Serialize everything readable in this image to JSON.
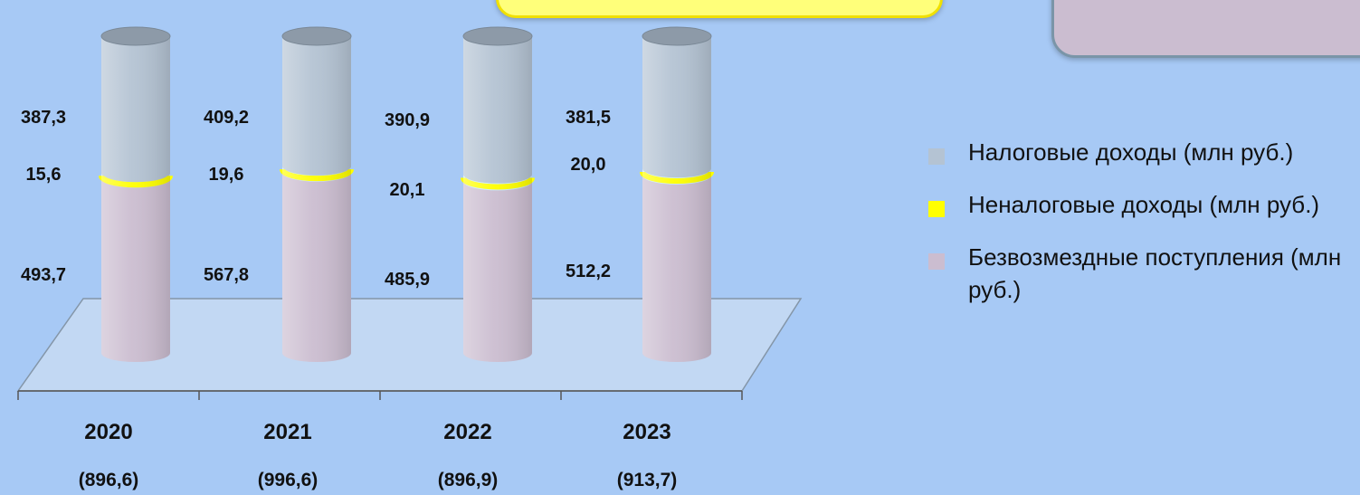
{
  "chart_data": {
    "type": "bar",
    "categories": [
      "2020",
      "2021",
      "2022",
      "2023"
    ],
    "totals": [
      "(896,6)",
      "(996,6)",
      "(896,9)",
      "(913,7)"
    ],
    "series": [
      {
        "name": "Налоговые доходы (млн руб.)",
        "color": "#b4c3d3",
        "values": [
          387.3,
          409.2,
          390.9,
          381.5
        ],
        "labels": [
          "387,3",
          "409,2",
          "390,9",
          "381,5"
        ]
      },
      {
        "name": "Неналоговые доходы (млн руб.)",
        "color": "#ffff00",
        "values": [
          15.6,
          19.6,
          20.1,
          20.0
        ],
        "labels": [
          "15,6",
          "19,6",
          "20,1",
          "20,0"
        ]
      },
      {
        "name": "Безвозмездные поступления (млн руб.)",
        "color": "#cbbdd0",
        "values": [
          493.7,
          567.8,
          485.9,
          512.2
        ],
        "labels": [
          "493,7",
          "567,8",
          "485,9",
          "512,2"
        ]
      }
    ]
  }
}
